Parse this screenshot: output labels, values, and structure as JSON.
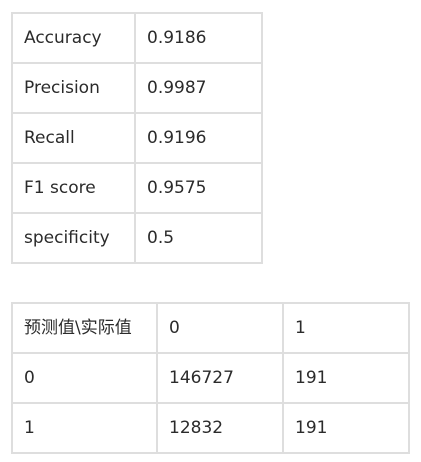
{
  "metrics_table": {
    "rows": [
      {
        "metric": "Accuracy",
        "value": "0.9186"
      },
      {
        "metric": "Precision",
        "value": "0.9987"
      },
      {
        "metric": "Recall",
        "value": "0.9196"
      },
      {
        "metric": "F1 score",
        "value": "0.9575"
      },
      {
        "metric": "specificity",
        "value": "0.5"
      }
    ]
  },
  "confusion_table": {
    "header": [
      "预测值\\实际值",
      "0",
      "1"
    ],
    "rows": [
      [
        "0",
        "146727",
        "191"
      ],
      [
        "1",
        "12832",
        "191"
      ]
    ]
  },
  "colors": {
    "border": "#dedede",
    "text": "#2b2b2b",
    "background": "#ffffff"
  }
}
